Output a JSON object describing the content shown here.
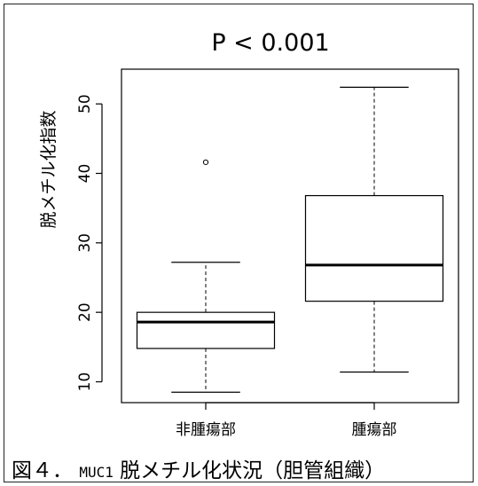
{
  "chart_data": {
    "type": "boxplot",
    "title": "P < 0.001",
    "ylabel": "脱メチル化指数",
    "xlabel": "",
    "ylim": [
      7,
      55
    ],
    "yticks": [
      10,
      20,
      30,
      40,
      50
    ],
    "categories": [
      "非腫瘍部",
      "腫瘍部"
    ],
    "boxes": [
      {
        "category": "非腫瘍部",
        "whisker_low": 8.5,
        "q1": 14.8,
        "median": 18.6,
        "q3": 20.0,
        "whisker_high": 27.2,
        "outliers": [
          41.6
        ]
      },
      {
        "category": "腫瘍部",
        "whisker_low": 11.4,
        "q1": 21.6,
        "median": 26.8,
        "q3": 36.8,
        "whisker_high": 52.4,
        "outliers": []
      }
    ],
    "grid": false,
    "legend": false
  },
  "caption": {
    "prefix": "図４．",
    "code": "MUC1",
    "rest": "脱メチル化状況（胆管組織）"
  }
}
